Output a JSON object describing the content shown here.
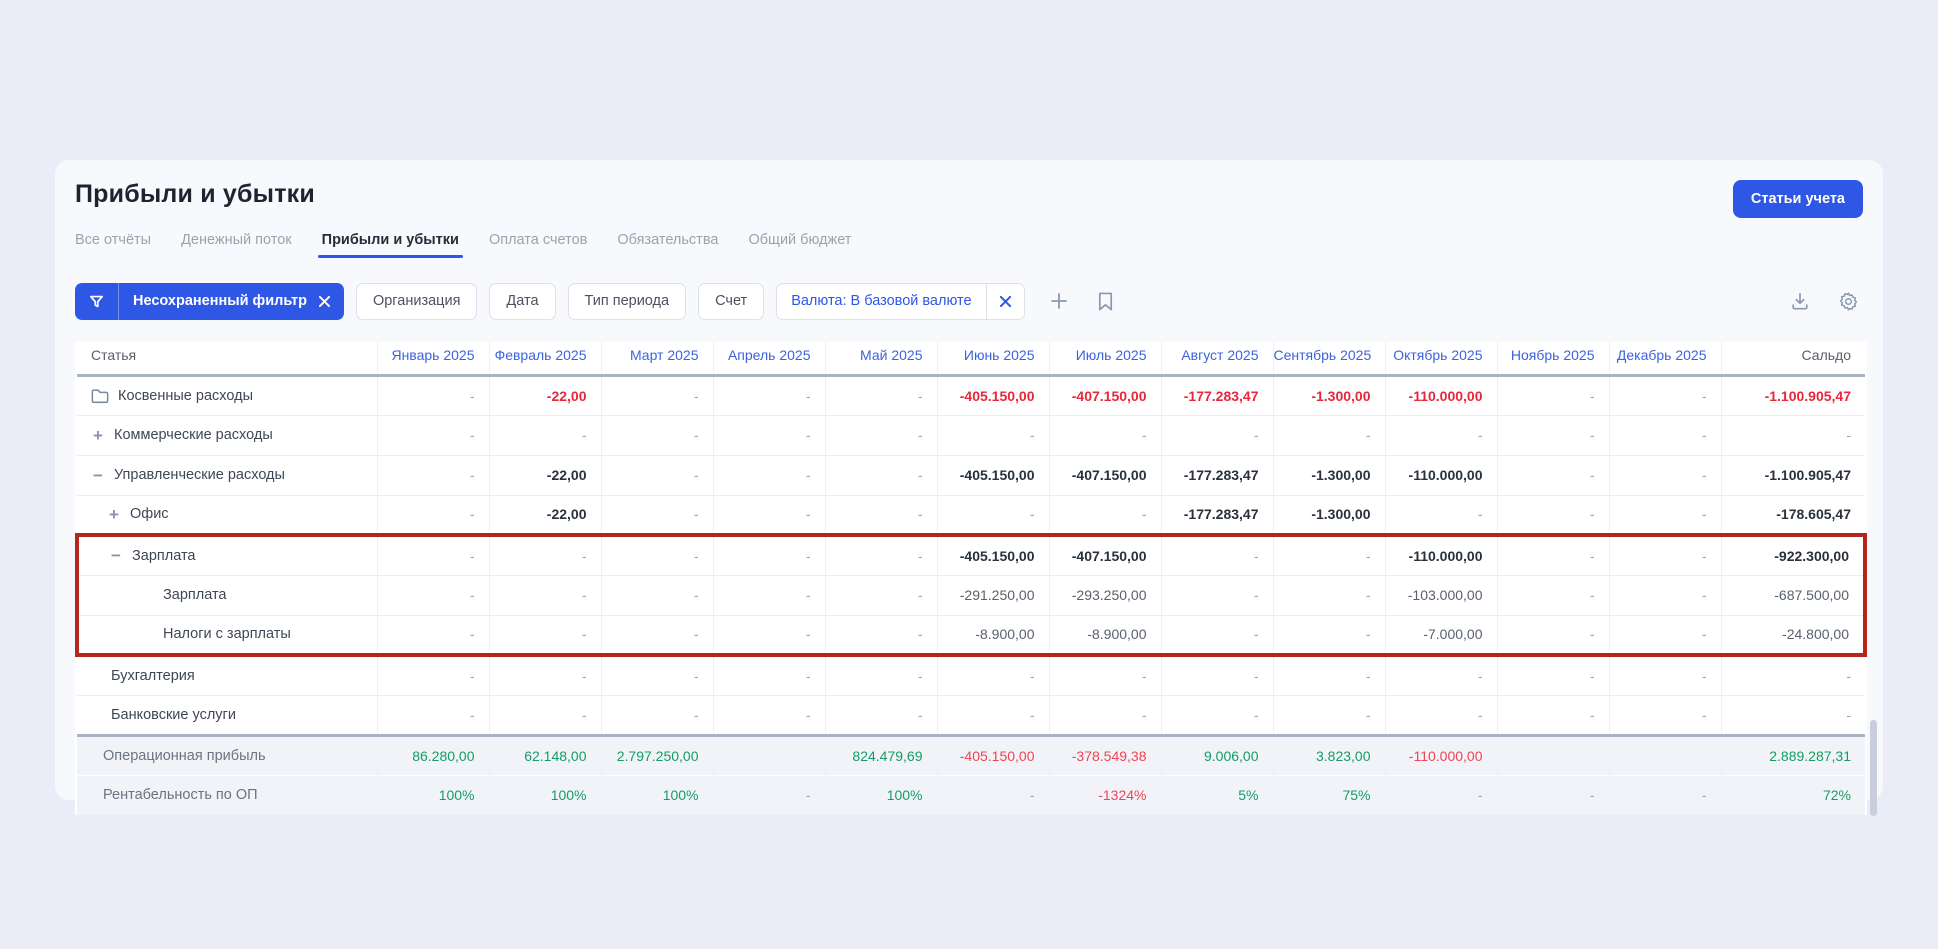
{
  "page": {
    "title": "Прибыли и убытки",
    "primary_button": "Статьи учета"
  },
  "tabs": [
    {
      "label": "Все отчёты",
      "active": false
    },
    {
      "label": "Денежный поток",
      "active": false
    },
    {
      "label": "Прибыли и убытки",
      "active": true
    },
    {
      "label": "Оплата счетов",
      "active": false
    },
    {
      "label": "Обязательства",
      "active": false
    },
    {
      "label": "Общий бюджет",
      "active": false
    }
  ],
  "filters": {
    "unsaved_label": "Несохраненный фильтр",
    "chips": [
      "Организация",
      "Дата",
      "Тип периода",
      "Счет"
    ],
    "currency_label": "Валюта: В базовой валюте",
    "icons": [
      "add-filter-icon",
      "bookmark-icon",
      "download-icon",
      "settings-gear-icon"
    ]
  },
  "colors": {
    "accent_blue": "#2f57e6",
    "link_blue": "#3c63de",
    "negative_red": "#e7273a",
    "positive_green": "#169c62",
    "highlight_border_red": "#b5261c"
  },
  "table": {
    "columns": [
      "Статья",
      "Январь 2025",
      "Февраль 2025",
      "Март 2025",
      "Апрель 2025",
      "Май 2025",
      "Июнь 2025",
      "Июль 2025",
      "Август 2025",
      "Сентябрь 2025",
      "Октябрь 2025",
      "Ноябрь 2025",
      "Декабрь 2025",
      "Сальдо"
    ],
    "rows": [
      {
        "label": "Косвенные расходы",
        "icon": "folder",
        "level": "lv0",
        "hl": "",
        "values": [
          "-",
          "-22,00",
          "-",
          "-",
          "-",
          "-405.150,00",
          "-407.150,00",
          "-177.283,47",
          "-1.300,00",
          "-110.000,00",
          "-",
          "-",
          "-1.100.905,47"
        ],
        "styles": [
          "dash",
          "red",
          "dash",
          "dash",
          "dash",
          "red",
          "red",
          "red",
          "red",
          "red",
          "dash",
          "dash",
          "red"
        ]
      },
      {
        "label": "Коммерческие расходы",
        "icon": "plus",
        "level": "lv0",
        "hl": "",
        "values": [
          "-",
          "-",
          "-",
          "-",
          "-",
          "-",
          "-",
          "-",
          "-",
          "-",
          "-",
          "-",
          "-"
        ],
        "styles": [
          "dash",
          "dash",
          "dash",
          "dash",
          "dash",
          "dash",
          "dash",
          "dash",
          "dash",
          "dash",
          "dash",
          "dash",
          "dash"
        ]
      },
      {
        "label": "Управленческие расходы",
        "icon": "minus",
        "level": "lv0",
        "hl": "",
        "values": [
          "-",
          "-22,00",
          "-",
          "-",
          "-",
          "-405.150,00",
          "-407.150,00",
          "-177.283,47",
          "-1.300,00",
          "-110.000,00",
          "-",
          "-",
          "-1.100.905,47"
        ],
        "styles": [
          "dash",
          "dark",
          "dash",
          "dash",
          "dash",
          "dark",
          "dark",
          "dark",
          "dark",
          "dark",
          "dash",
          "dash",
          "dark"
        ]
      },
      {
        "label": "Офис",
        "icon": "plus",
        "level": "lv1",
        "hl": "",
        "values": [
          "-",
          "-22,00",
          "-",
          "-",
          "-",
          "-",
          "-",
          "-177.283,47",
          "-1.300,00",
          "-",
          "-",
          "-",
          "-178.605,47"
        ],
        "styles": [
          "dash",
          "dark",
          "dash",
          "dash",
          "dash",
          "dash",
          "dash",
          "dark",
          "dark",
          "dash",
          "dash",
          "dash",
          "dark"
        ]
      },
      {
        "label": "Зарплата",
        "icon": "minus",
        "level": "lv1",
        "hl": "top",
        "values": [
          "-",
          "-",
          "-",
          "-",
          "-",
          "-405.150,00",
          "-407.150,00",
          "-",
          "-",
          "-110.000,00",
          "-",
          "-",
          "-922.300,00"
        ],
        "styles": [
          "dash",
          "dash",
          "dash",
          "dash",
          "dash",
          "dark",
          "dark",
          "dash",
          "dash",
          "dark",
          "dash",
          "dash",
          "dark"
        ]
      },
      {
        "label": "Зарплата",
        "icon": "",
        "level": "lv2",
        "hl": "mid",
        "values": [
          "-",
          "-",
          "-",
          "-",
          "-",
          "-291.250,00",
          "-293.250,00",
          "-",
          "-",
          "-103.000,00",
          "-",
          "-",
          "-687.500,00"
        ],
        "styles": [
          "dash",
          "dash",
          "dash",
          "dash",
          "dash",
          "plain",
          "plain",
          "dash",
          "dash",
          "plain",
          "dash",
          "dash",
          "plain"
        ]
      },
      {
        "label": "Налоги с зарплаты",
        "icon": "",
        "level": "lv2",
        "hl": "bottom",
        "values": [
          "-",
          "-",
          "-",
          "-",
          "-",
          "-8.900,00",
          "-8.900,00",
          "-",
          "-",
          "-7.000,00",
          "-",
          "-",
          "-24.800,00"
        ],
        "styles": [
          "dash",
          "dash",
          "dash",
          "dash",
          "dash",
          "plain",
          "plain",
          "dash",
          "dash",
          "plain",
          "dash",
          "dash",
          "plain"
        ]
      },
      {
        "label": "Бухгалтерия",
        "icon": "",
        "level": "lv1nc",
        "hl": "",
        "values": [
          "-",
          "-",
          "-",
          "-",
          "-",
          "-",
          "-",
          "-",
          "-",
          "-",
          "-",
          "-",
          "-"
        ],
        "styles": [
          "dash",
          "dash",
          "dash",
          "dash",
          "dash",
          "dash",
          "dash",
          "dash",
          "dash",
          "dash",
          "dash",
          "dash",
          "dash"
        ]
      },
      {
        "label": "Банковские услуги",
        "icon": "",
        "level": "lv1nc",
        "hl": "",
        "values": [
          "-",
          "-",
          "-",
          "-",
          "-",
          "-",
          "-",
          "-",
          "-",
          "-",
          "-",
          "-",
          "-"
        ],
        "styles": [
          "dash",
          "dash",
          "dash",
          "dash",
          "dash",
          "dash",
          "dash",
          "dash",
          "dash",
          "dash",
          "dash",
          "dash",
          "dash"
        ]
      }
    ],
    "summary_rows": [
      {
        "label": "Операционная прибыль",
        "values": [
          "86.280,00",
          "62.148,00",
          "2.797.250,00",
          "",
          "824.479,69",
          "-405.150,00",
          "-378.549,38",
          "9.006,00",
          "3.823,00",
          "-110.000,00",
          "",
          "",
          "2.889.287,31"
        ],
        "styles": [
          "green",
          "green",
          "green",
          "blank",
          "green",
          "red2",
          "red2",
          "green",
          "green",
          "red2",
          "blank",
          "blank",
          "green"
        ]
      },
      {
        "label": "Рентабельность по ОП",
        "values": [
          "100%",
          "100%",
          "100%",
          "-",
          "100%",
          "-",
          "-1324%",
          "5%",
          "75%",
          "-",
          "-",
          "-",
          "72%"
        ],
        "styles": [
          "green",
          "green",
          "green",
          "dash",
          "green",
          "dash",
          "red2",
          "green",
          "green",
          "dash",
          "dash",
          "dash",
          "green"
        ]
      }
    ]
  }
}
